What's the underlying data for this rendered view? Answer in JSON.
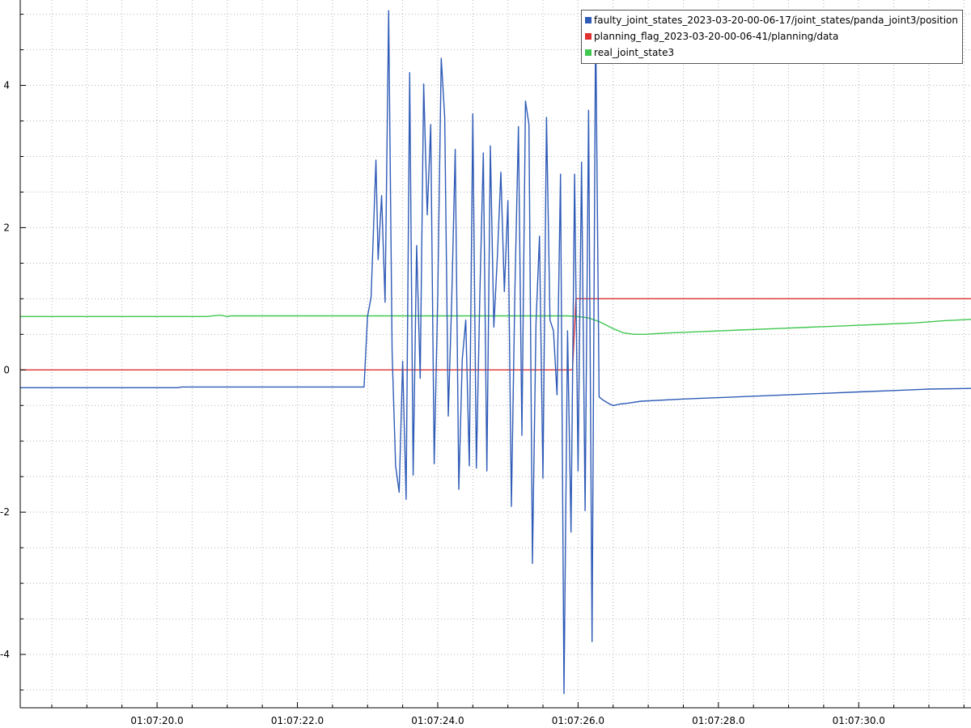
{
  "chart_data": {
    "type": "line",
    "title": "",
    "xlabel": "",
    "ylabel": "",
    "x_tick_labels": [
      "01:07:20.0",
      "01:07:22.0",
      "01:07:24.0",
      "01:07:26.0",
      "01:07:28.0",
      "01:07:30.0"
    ],
    "x_tick_values": [
      20,
      22,
      24,
      26,
      28,
      30
    ],
    "y_tick_labels": [
      "-4",
      "-2",
      "0",
      "2",
      "4"
    ],
    "y_tick_values": [
      -4,
      -2,
      0,
      2,
      4
    ],
    "xlim": [
      18.05,
      31.6
    ],
    "ylim": [
      -4.75,
      5.2
    ],
    "grid": true,
    "legend_position": "top-right",
    "series": [
      {
        "name": "faulty_joint_states_2023-03-20-00-06-17/joint_states/panda_joint3/position",
        "color": "#2f5bb7",
        "x": [
          18.05,
          20.3,
          20.35,
          22.95,
          23.0,
          23.05,
          23.12,
          23.15,
          23.2,
          23.25,
          23.3,
          23.35,
          23.4,
          23.45,
          23.5,
          23.55,
          23.6,
          23.65,
          23.7,
          23.75,
          23.8,
          23.85,
          23.9,
          23.95,
          24.0,
          24.05,
          24.1,
          24.15,
          24.2,
          24.25,
          24.3,
          24.35,
          24.4,
          24.45,
          24.5,
          24.55,
          24.6,
          24.65,
          24.7,
          24.75,
          24.8,
          24.85,
          24.9,
          24.95,
          25.0,
          25.05,
          25.1,
          25.15,
          25.2,
          25.25,
          25.3,
          25.35,
          25.4,
          25.45,
          25.5,
          25.55,
          25.6,
          25.65,
          25.7,
          25.75,
          25.8,
          25.85,
          25.9,
          25.95,
          26.0,
          26.05,
          26.1,
          26.15,
          26.2,
          26.25,
          26.3,
          26.35,
          26.4,
          26.45,
          26.5,
          26.55,
          26.6,
          26.7,
          26.9,
          27.5,
          28.0,
          28.5,
          29.0,
          29.5,
          30.0,
          30.5,
          31.0,
          31.6
        ],
        "y": [
          -0.25,
          -0.25,
          -0.24,
          -0.24,
          0.75,
          1.02,
          2.95,
          1.55,
          2.45,
          0.95,
          5.05,
          0.25,
          -1.35,
          -1.72,
          0.12,
          -1.82,
          4.18,
          -1.48,
          1.75,
          -0.12,
          4.02,
          2.18,
          3.45,
          -1.32,
          1.05,
          4.38,
          3.55,
          -0.65,
          1.0,
          3.1,
          -1.68,
          0.15,
          0.7,
          -1.35,
          3.6,
          -1.38,
          1.05,
          3.05,
          -1.42,
          3.15,
          0.6,
          1.6,
          2.78,
          1.1,
          2.38,
          -1.92,
          1.1,
          3.42,
          -0.92,
          3.78,
          3.45,
          -2.72,
          0.65,
          1.88,
          -1.52,
          3.55,
          0.7,
          0.55,
          -0.35,
          2.75,
          -4.55,
          0.55,
          -2.28,
          2.75,
          -1.42,
          2.92,
          -1.98,
          3.65,
          -3.82,
          4.95,
          -0.38,
          -0.42,
          -0.45,
          -0.48,
          -0.5,
          -0.49,
          -0.48,
          -0.47,
          -0.44,
          -0.41,
          -0.39,
          -0.37,
          -0.35,
          -0.33,
          -0.31,
          -0.29,
          -0.27,
          -0.26
        ]
      },
      {
        "name": "planning_flag_2023-03-20-00-06-41/planning/data",
        "color": "#e03030",
        "x": [
          18.05,
          25.92,
          25.97,
          31.6
        ],
        "y": [
          0,
          0,
          1,
          1
        ]
      },
      {
        "name": "real_joint_state3",
        "color": "#40c850",
        "x": [
          18.05,
          20.7,
          20.9,
          21.0,
          21.05,
          25.6,
          25.85,
          26.0,
          26.15,
          26.3,
          26.5,
          26.65,
          26.8,
          26.95,
          27.3,
          27.8,
          28.3,
          28.8,
          29.3,
          29.8,
          30.3,
          30.8,
          31.2,
          31.6
        ],
        "y": [
          0.75,
          0.75,
          0.77,
          0.75,
          0.76,
          0.76,
          0.76,
          0.75,
          0.73,
          0.68,
          0.58,
          0.52,
          0.5,
          0.5,
          0.52,
          0.54,
          0.56,
          0.58,
          0.6,
          0.62,
          0.64,
          0.66,
          0.69,
          0.71
        ]
      }
    ]
  }
}
